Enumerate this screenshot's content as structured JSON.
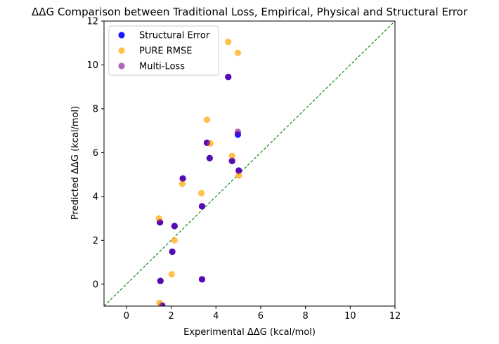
{
  "chart_data": {
    "type": "scatter",
    "title": "ΔΔG Comparison between Traditional Loss, Empirical, Physical and Structural Error",
    "xlabel": "Experimental ΔΔG (kcal/mol)",
    "ylabel": "Predicted ΔΔG (kcal/mol)",
    "xlim": [
      -1,
      12
    ],
    "ylim": [
      -1,
      12
    ],
    "xticks": [
      0,
      2,
      4,
      6,
      8,
      10,
      12
    ],
    "yticks": [
      0,
      2,
      4,
      6,
      8,
      10,
      12
    ],
    "grid": false,
    "legend_position": "top-left",
    "reference_line": {
      "type": "y=x",
      "color": "#008000",
      "style": "dashed"
    },
    "series": [
      {
        "name": "Structural Error",
        "color": "#0000ff",
        "alpha": 0.9,
        "points": [
          [
            1.5,
            2.82
          ],
          [
            1.52,
            0.15
          ],
          [
            1.6,
            -0.98
          ],
          [
            2.05,
            1.48
          ],
          [
            2.15,
            2.65
          ],
          [
            2.52,
            4.82
          ],
          [
            3.38,
            3.55
          ],
          [
            3.38,
            0.22
          ],
          [
            3.6,
            6.45
          ],
          [
            3.72,
            5.75
          ],
          [
            4.55,
            9.45
          ],
          [
            4.72,
            5.62
          ],
          [
            4.98,
            6.82
          ],
          [
            5.02,
            5.18
          ]
        ]
      },
      {
        "name": "PURE RMSE",
        "color": "#ffa500",
        "alpha": 0.7,
        "points": [
          [
            1.45,
            3.0
          ],
          [
            1.48,
            -0.85
          ],
          [
            2.02,
            0.45
          ],
          [
            2.15,
            2.0
          ],
          [
            2.5,
            4.58
          ],
          [
            3.35,
            4.15
          ],
          [
            3.6,
            7.5
          ],
          [
            3.75,
            6.42
          ],
          [
            4.55,
            11.05
          ],
          [
            4.72,
            5.85
          ],
          [
            4.98,
            10.55
          ],
          [
            5.02,
            4.95
          ]
        ]
      },
      {
        "name": "Multi-Loss",
        "color": "#800080",
        "alpha": 0.6,
        "points": [
          [
            1.5,
            2.82
          ],
          [
            1.52,
            0.15
          ],
          [
            1.6,
            -0.98
          ],
          [
            2.05,
            1.48
          ],
          [
            2.15,
            2.65
          ],
          [
            2.52,
            4.82
          ],
          [
            3.38,
            3.55
          ],
          [
            3.38,
            0.22
          ],
          [
            3.6,
            6.45
          ],
          [
            3.72,
            5.75
          ],
          [
            4.55,
            9.45
          ],
          [
            4.72,
            5.62
          ],
          [
            4.98,
            6.95
          ],
          [
            5.02,
            5.18
          ]
        ]
      }
    ]
  }
}
